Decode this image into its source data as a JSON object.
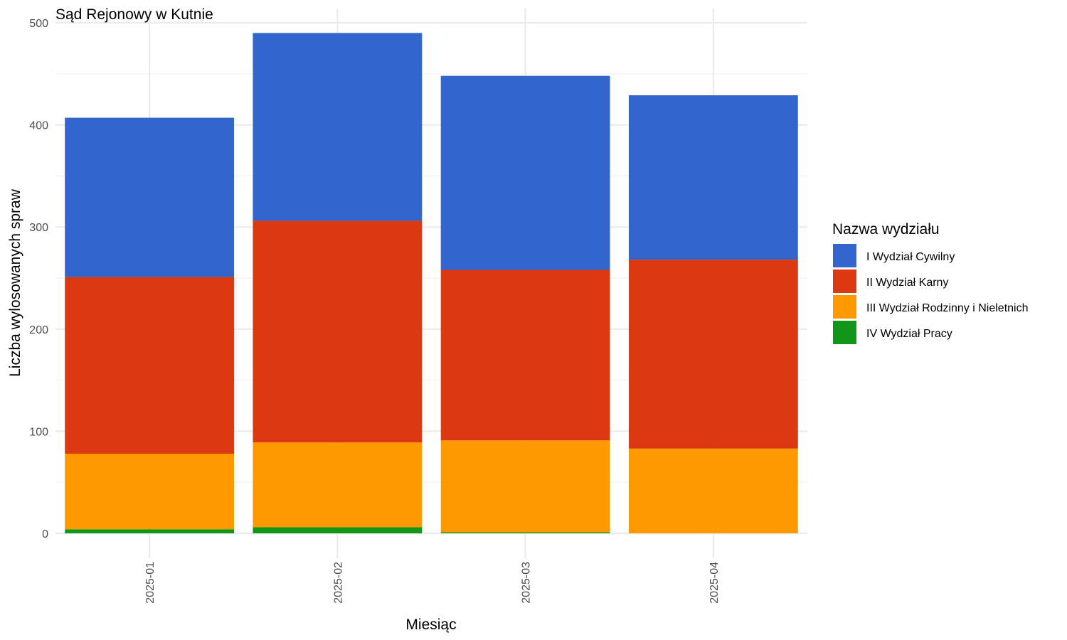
{
  "chart_data": {
    "type": "bar",
    "stacked": true,
    "title": "Sąd Rejonowy w Kutnie",
    "xlabel": "Miesiąc",
    "ylabel": "Liczba wylosowanych spraw",
    "ylim": [
      0,
      500
    ],
    "yticks": [
      0,
      100,
      200,
      300,
      400,
      500
    ],
    "grid": true,
    "legend_position": "right",
    "legend_title": "Nazwa wydziału",
    "categories": [
      "2025-01",
      "2025-02",
      "2025-03",
      "2025-04"
    ],
    "series": [
      {
        "name": "I Wydział Cywilny",
        "color": "#3366cc",
        "values": [
          156,
          184,
          190,
          161
        ]
      },
      {
        "name": "II Wydział Karny",
        "color": "#dc3912",
        "values": [
          173,
          217,
          167,
          185
        ]
      },
      {
        "name": "III Wydział Rodzinny i Nieletnich",
        "color": "#ff9900",
        "values": [
          74,
          83,
          90,
          83
        ]
      },
      {
        "name": "IV Wydział Pracy",
        "color": "#109618",
        "values": [
          4,
          6,
          1,
          0
        ]
      }
    ]
  }
}
